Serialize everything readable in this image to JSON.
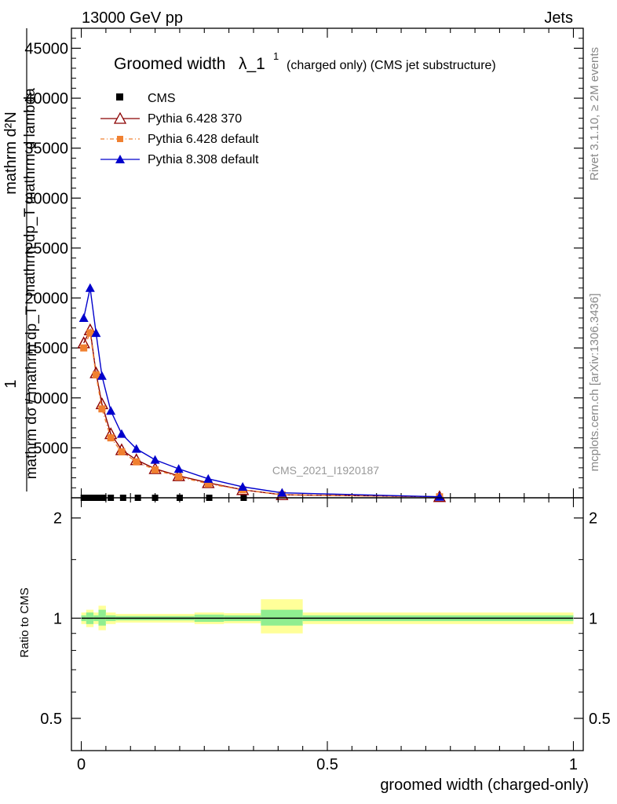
{
  "header": {
    "left": "13000 GeV pp",
    "right": "Jets"
  },
  "side_labels": {
    "top": "Rivet 3.1.10, ≥ 2M events",
    "bottom": "mcplots.cern.ch [arXiv:1306.3436]"
  },
  "watermark": "CMS_2021_I1920187",
  "main_title": {
    "prefix": "Groomed width",
    "symbol": "λ_1",
    "superscript": "1",
    "subtitle": "(charged only) (CMS jet substructure)"
  },
  "ylabel_lines": [
    "1",
    "mathrm dσ / mathrm dp_T",
    "mathrm dp_T mathrm d lambda",
    "mathrm d²N"
  ],
  "ratio_ylabel": "Ratio to CMS",
  "xlabel": "groomed width (charged-only)",
  "colors": {
    "cms": "#000000",
    "p6_370": "#8b0000",
    "p6_default": "#f08030",
    "p8_default": "#0000cc",
    "band_inner": "#90ee90",
    "band_outer": "#ffff99"
  },
  "chart_data": [
    {
      "type": "line",
      "title": "",
      "xlabel": "",
      "ylabel": "",
      "xlim": [
        -0.02,
        1.02
      ],
      "ylim": [
        0,
        47000
      ],
      "x_ticks": [
        0,
        0.5,
        1
      ],
      "y_ticks": [
        5000,
        10000,
        15000,
        20000,
        25000,
        30000,
        35000,
        40000,
        45000
      ],
      "y_tick_labels": [
        "5000",
        "10000",
        "15000",
        "20000",
        "25000",
        "30000",
        "35000",
        "40000",
        "45000"
      ],
      "legend_position": "top-left",
      "series": [
        {
          "name": "CMS",
          "marker": "square",
          "color": "#000000",
          "x": [
            0.005,
            0.015,
            0.025,
            0.035,
            0.045,
            0.06,
            0.085,
            0.115,
            0.15,
            0.2,
            0.26,
            0.33
          ],
          "y": [
            0.3,
            0.3,
            0.3,
            0.3,
            0.3,
            0.3,
            0.3,
            0.3,
            0.3,
            0.3,
            0.3,
            0.3
          ]
        },
        {
          "name": "Pythia 6.428 370",
          "marker": "open-triangle",
          "color": "#8b0000",
          "x": [
            0.005,
            0.018,
            0.03,
            0.042,
            0.06,
            0.082,
            0.112,
            0.15,
            0.198,
            0.258,
            0.328,
            0.408,
            0.728
          ],
          "y": [
            15500,
            16800,
            12500,
            9400,
            6400,
            4800,
            3800,
            2900,
            2200,
            1500,
            800,
            300,
            100
          ]
        },
        {
          "name": "Pythia 6.428 default",
          "marker": "filled-square",
          "color": "#f08030",
          "x": [
            0.005,
            0.018,
            0.03,
            0.042,
            0.06,
            0.082,
            0.112,
            0.15,
            0.198,
            0.258,
            0.328,
            0.408,
            0.728
          ],
          "y": [
            15000,
            16500,
            12300,
            8900,
            6000,
            4600,
            3600,
            2800,
            2100,
            1400,
            800,
            300,
            100
          ]
        },
        {
          "name": "Pythia 8.308 default",
          "marker": "filled-triangle",
          "color": "#0000cc",
          "x": [
            0.005,
            0.018,
            0.03,
            0.042,
            0.06,
            0.082,
            0.112,
            0.15,
            0.198,
            0.258,
            0.328,
            0.408,
            0.728
          ],
          "y": [
            18000,
            21000,
            16500,
            12200,
            8700,
            6400,
            4900,
            3800,
            2900,
            1900,
            1100,
            500,
            100
          ]
        }
      ]
    },
    {
      "type": "area",
      "title": "",
      "xlabel": "groomed width (charged-only)",
      "ylabel": "Ratio to CMS",
      "xlim": [
        -0.02,
        1.02
      ],
      "ylim": [
        0.4,
        2.3
      ],
      "log_y": true,
      "x_ticks": [
        0,
        0.5,
        1
      ],
      "x_tick_labels": [
        "0",
        "0.5",
        "1"
      ],
      "y_ticks": [
        0.5,
        1,
        2
      ],
      "y_tick_labels": [
        "0.5",
        "1",
        "2"
      ],
      "reference_line": 1,
      "bands": [
        {
          "x0": 0.0,
          "x1": 0.01,
          "inner": [
            0.98,
            1.02
          ],
          "outer": [
            0.96,
            1.04
          ]
        },
        {
          "x0": 0.01,
          "x1": 0.025,
          "inner": [
            0.96,
            1.04
          ],
          "outer": [
            0.94,
            1.06
          ]
        },
        {
          "x0": 0.025,
          "x1": 0.035,
          "inner": [
            0.98,
            1.02
          ],
          "outer": [
            0.96,
            1.04
          ]
        },
        {
          "x0": 0.035,
          "x1": 0.05,
          "inner": [
            0.95,
            1.06
          ],
          "outer": [
            0.92,
            1.09
          ]
        },
        {
          "x0": 0.05,
          "x1": 0.07,
          "inner": [
            0.98,
            1.02
          ],
          "outer": [
            0.96,
            1.04
          ]
        },
        {
          "x0": 0.07,
          "x1": 0.23,
          "inner": [
            0.985,
            1.015
          ],
          "outer": [
            0.97,
            1.03
          ]
        },
        {
          "x0": 0.23,
          "x1": 0.29,
          "inner": [
            0.975,
            1.025
          ],
          "outer": [
            0.96,
            1.04
          ]
        },
        {
          "x0": 0.29,
          "x1": 0.365,
          "inner": [
            0.98,
            1.02
          ],
          "outer": [
            0.965,
            1.035
          ]
        },
        {
          "x0": 0.365,
          "x1": 0.45,
          "inner": [
            0.95,
            1.06
          ],
          "outer": [
            0.9,
            1.14
          ]
        },
        {
          "x0": 0.45,
          "x1": 1.0,
          "inner": [
            0.98,
            1.02
          ],
          "outer": [
            0.96,
            1.04
          ]
        }
      ]
    }
  ]
}
